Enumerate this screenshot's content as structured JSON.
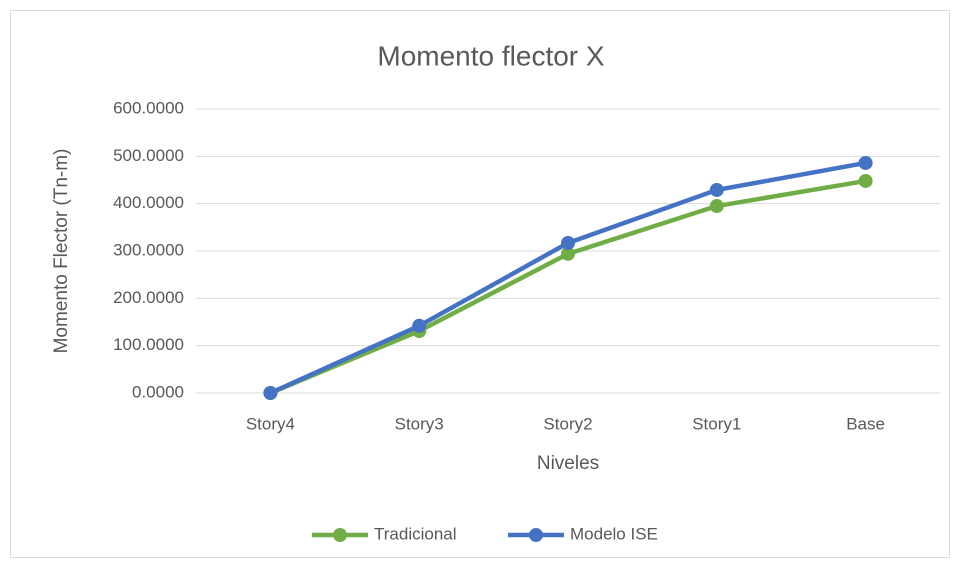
{
  "chart_data": {
    "type": "line",
    "title": "Momento flector X",
    "x_label": "Niveles",
    "y_label": "Momento Flector (Tn-m)",
    "categories": [
      "Story4",
      "Story3",
      "Story2",
      "Story1",
      "Base"
    ],
    "series": [
      {
        "name": "Tradicional",
        "color": "#70ad47",
        "values": [
          0,
          131,
          294,
          395,
          448
        ]
      },
      {
        "name": "Modelo ISE",
        "color": "#4472c4",
        "values": [
          0,
          142,
          317,
          429,
          486
        ]
      }
    ],
    "ylim": [
      0,
      600
    ],
    "yticks": [
      {
        "value": 0,
        "label": "0.0000"
      },
      {
        "value": 100,
        "label": "100.0000"
      },
      {
        "value": 200,
        "label": "200.0000"
      },
      {
        "value": 300,
        "label": "300.0000"
      },
      {
        "value": 400,
        "label": "400.0000"
      },
      {
        "value": 500,
        "label": "500.0000"
      },
      {
        "value": 600,
        "label": "600.0000"
      }
    ],
    "grid": true,
    "legend": "bottom"
  }
}
